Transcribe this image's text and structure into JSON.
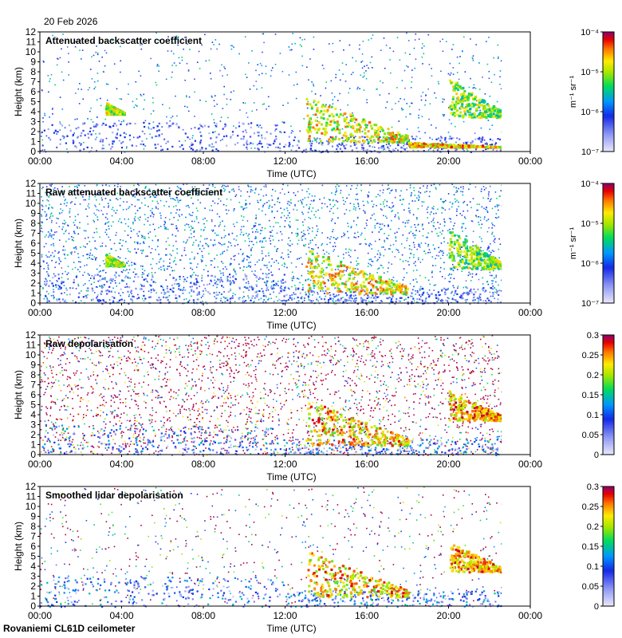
{
  "date_label": "20 Feb 2026",
  "footer_label": "Rovaniemi CL61D ceilometer",
  "x_ticks": [
    "00:00",
    "04:00",
    "08:00",
    "12:00",
    "16:00",
    "20:00",
    "00:00"
  ],
  "x_label": "Time (UTC)",
  "y_ticks": [
    "0",
    "1",
    "2",
    "3",
    "4",
    "5",
    "6",
    "7",
    "8",
    "9",
    "10",
    "11",
    "12"
  ],
  "y_label": "Height (km)",
  "chart_data": [
    {
      "type": "heatmap",
      "title": "Attenuated backscatter coefficient",
      "xlabel": "Time (UTC)",
      "ylabel": "Height (km)",
      "xlim": [
        0,
        24
      ],
      "ylim": [
        0,
        12
      ],
      "data_end_hour": 22.6,
      "colorbar": {
        "scale": "log",
        "unit_label": "m⁻¹ sr⁻¹",
        "ticks": [
          {
            "value": -7,
            "label": "10⁻⁷"
          },
          {
            "value": -6,
            "label": "10⁻⁶"
          },
          {
            "value": -5,
            "label": "10⁻⁵"
          },
          {
            "value": -4,
            "label": "10⁻⁴"
          }
        ],
        "range": [
          -7,
          -4
        ]
      },
      "features": [
        {
          "name": "mid-level cloud 03-04h",
          "t": [
            3.2,
            4.1
          ],
          "h": [
            3.8,
            5.0
          ],
          "level": 0.85
        },
        {
          "name": "frontal cloud layer 13-18h",
          "t": [
            13.0,
            18.0
          ],
          "h": [
            1.0,
            5.6
          ],
          "level": 0.9
        },
        {
          "name": "low cloud 18-22h",
          "t": [
            18.0,
            22.6
          ],
          "h": [
            0.5,
            1.0
          ],
          "level": 0.95
        },
        {
          "name": "upper cloud 20-22h",
          "t": [
            20.0,
            22.6
          ],
          "h": [
            3.5,
            7.5
          ],
          "level": 0.8
        }
      ]
    },
    {
      "type": "heatmap",
      "title": "Raw attenuated backscatter coefficient",
      "xlabel": "Time (UTC)",
      "ylabel": "Height (km)",
      "xlim": [
        0,
        24
      ],
      "ylim": [
        0,
        12
      ],
      "data_end_hour": 22.6,
      "colorbar": {
        "scale": "log",
        "unit_label": "m⁻¹ sr⁻¹",
        "ticks": [
          {
            "value": -7,
            "label": "10⁻⁷"
          },
          {
            "value": -6,
            "label": "10⁻⁶"
          },
          {
            "value": -5,
            "label": "10⁻⁵"
          },
          {
            "value": -4,
            "label": "10⁻⁴"
          }
        ],
        "range": [
          -7,
          -4
        ]
      },
      "features": [
        {
          "name": "mid-level cloud 03-04h",
          "t": [
            3.2,
            4.1
          ],
          "h": [
            3.8,
            5.0
          ],
          "level": 0.85
        },
        {
          "name": "frontal cloud layer 13-18h",
          "t": [
            13.0,
            18.0
          ],
          "h": [
            1.0,
            5.6
          ],
          "level": 0.9
        },
        {
          "name": "upper cloud 20-22h",
          "t": [
            20.0,
            22.6
          ],
          "h": [
            3.5,
            7.5
          ],
          "level": 0.8
        }
      ]
    },
    {
      "type": "heatmap",
      "title": "Raw depolarisation",
      "xlabel": "Time (UTC)",
      "ylabel": "Height (km)",
      "xlim": [
        0,
        24
      ],
      "ylim": [
        0,
        12
      ],
      "data_end_hour": 22.6,
      "colorbar": {
        "scale": "linear",
        "unit_label": "",
        "ticks": [
          {
            "value": 0,
            "label": "0"
          },
          {
            "value": 0.05,
            "label": "0.05"
          },
          {
            "value": 0.1,
            "label": "0.1"
          },
          {
            "value": 0.15,
            "label": "0.15"
          },
          {
            "value": 0.2,
            "label": "0.2"
          },
          {
            "value": 0.25,
            "label": "0.25"
          },
          {
            "value": 0.3,
            "label": "0.3"
          }
        ],
        "range": [
          0,
          0.3
        ]
      },
      "features": [
        {
          "name": "cloud depolarisation 13-18h",
          "t": [
            13.0,
            18.0
          ],
          "h": [
            1.0,
            5.6
          ],
          "level": 0.95
        },
        {
          "name": "upper cloud 20-22h",
          "t": [
            20.0,
            22.6
          ],
          "h": [
            3.5,
            6.5
          ],
          "level": 0.98
        }
      ]
    },
    {
      "type": "heatmap",
      "title": "Smoothed lidar depolarisation",
      "xlabel": "Time (UTC)",
      "ylabel": "Height (km)",
      "xlim": [
        0,
        24
      ],
      "ylim": [
        0,
        12
      ],
      "data_end_hour": 22.6,
      "colorbar": {
        "scale": "linear",
        "unit_label": "",
        "ticks": [
          {
            "value": 0,
            "label": "0"
          },
          {
            "value": 0.05,
            "label": "0.05"
          },
          {
            "value": 0.1,
            "label": "0.1"
          },
          {
            "value": 0.15,
            "label": "0.15"
          },
          {
            "value": 0.2,
            "label": "0.2"
          },
          {
            "value": 0.25,
            "label": "0.25"
          },
          {
            "value": 0.3,
            "label": "0.3"
          }
        ],
        "range": [
          0,
          0.3
        ]
      },
      "features": [
        {
          "name": "cloud depolarisation 13-18h",
          "t": [
            13.0,
            18.0
          ],
          "h": [
            1.0,
            5.6
          ],
          "level": 0.95
        },
        {
          "name": "upper cloud 20-22h",
          "t": [
            20.0,
            22.6
          ],
          "h": [
            3.5,
            6.5
          ],
          "level": 0.98
        }
      ]
    }
  ]
}
